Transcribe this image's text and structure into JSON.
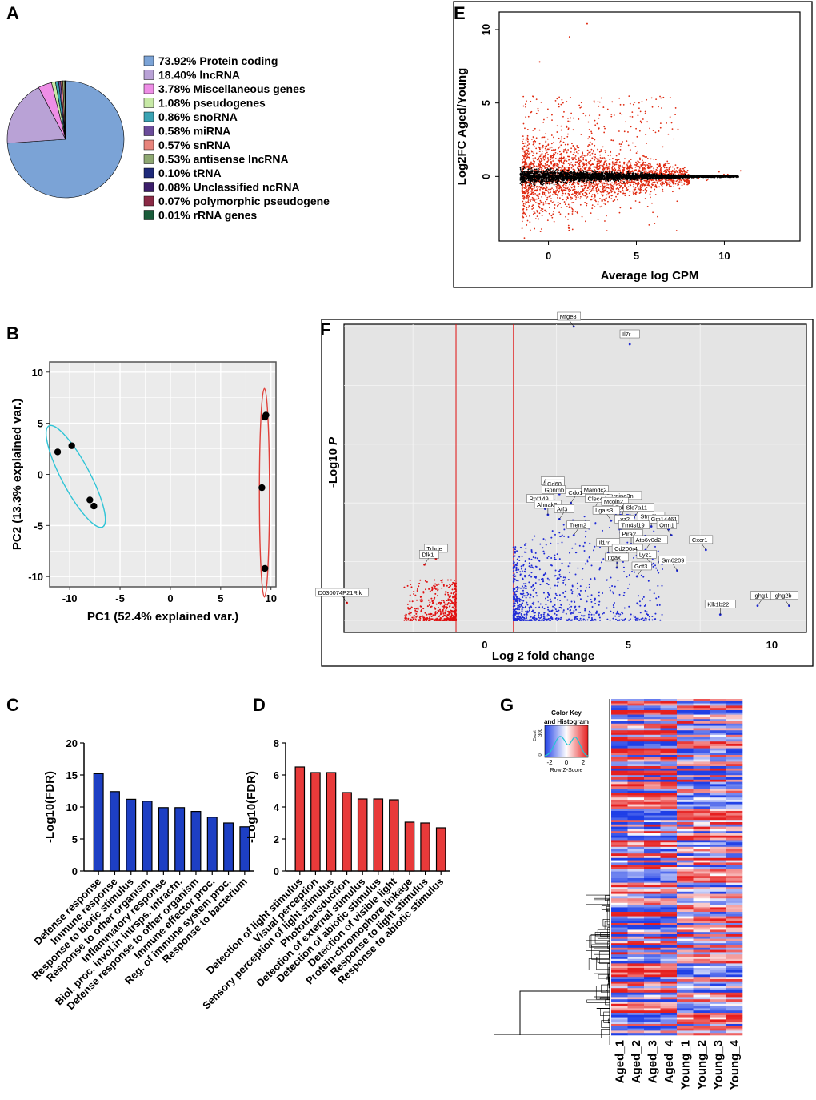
{
  "panels": [
    "A",
    "B",
    "C",
    "D",
    "E",
    "F",
    "G"
  ],
  "chart_data": [
    {
      "id": "A",
      "type": "pie",
      "slices": [
        {
          "value": 73.92,
          "label": "Protein coding",
          "color": "#7ba3d6"
        },
        {
          "value": 18.4,
          "label": "lncRNA",
          "color": "#b9a2d6"
        },
        {
          "value": 3.78,
          "label": "Miscellaneous genes",
          "color": "#ee8ee6"
        },
        {
          "value": 1.08,
          "label": "pseudogenes",
          "color": "#c7e9a6"
        },
        {
          "value": 0.86,
          "label": "snoRNA",
          "color": "#3aa3b3"
        },
        {
          "value": 0.58,
          "label": "miRNA",
          "color": "#6b4c9a"
        },
        {
          "value": 0.57,
          "label": "snRNA",
          "color": "#e8847c"
        },
        {
          "value": 0.53,
          "label": "antisense lncRNA",
          "color": "#8ea872"
        },
        {
          "value": 0.1,
          "label": "tRNA",
          "color": "#1f2a7a"
        },
        {
          "value": 0.08,
          "label": "Unclassified ncRNA",
          "color": "#3c1e6b"
        },
        {
          "value": 0.07,
          "label": "polymorphic pseudogene",
          "color": "#8a2a45"
        },
        {
          "value": 0.01,
          "label": "rRNA genes",
          "color": "#1a5c3a"
        }
      ],
      "legend_text": [
        "73.92%  Protein coding",
        "18.40%  lncRNA",
        "3.78%  Miscellaneous genes",
        "1.08%  pseudogenes",
        "0.86%  snoRNA",
        "0.58%  miRNA",
        "0.57%  snRNA",
        "0.53%  antisense lncRNA",
        "0.10%  tRNA",
        "0.08%  Unclassified ncRNA",
        "0.07%  polymorphic pseudogene",
        "0.01%  rRNA genes"
      ]
    },
    {
      "id": "B",
      "type": "scatter",
      "xlabel": "PC1 (52.4% explained var.)",
      "ylabel": "PC2 (13.3% explained var.)",
      "xlim": [
        -12,
        10.5
      ],
      "ylim": [
        -11,
        11
      ],
      "xticks": [
        -10,
        -5,
        0,
        5,
        10
      ],
      "yticks": [
        -10,
        -5,
        0,
        5,
        10
      ],
      "series": [
        {
          "color": "#2ec4d6",
          "points": [
            [
              -11.2,
              2.2
            ],
            [
              -9.8,
              2.8
            ],
            [
              -8.0,
              -2.5
            ],
            [
              -7.6,
              -3.1
            ]
          ],
          "ellipse": {
            "cx": -9.4,
            "cy": -0.2,
            "rx": 1.4,
            "ry": 5.6,
            "rot": -28
          }
        },
        {
          "color": "#e0403a",
          "points": [
            [
              9.4,
              5.6
            ],
            [
              9.5,
              5.8
            ],
            [
              9.1,
              -1.3
            ],
            [
              9.4,
              -9.2
            ]
          ],
          "ellipse": {
            "cx": 9.35,
            "cy": -1.8,
            "rx": 0.5,
            "ry": 10.2,
            "rot": 0
          }
        }
      ]
    },
    {
      "id": "C",
      "type": "bar",
      "ylabel": "-Log10(FDR)",
      "ylim": [
        0,
        20
      ],
      "yticks": [
        0,
        5,
        10,
        15,
        20
      ],
      "color": "#1d3fc4",
      "categories": [
        "Defense response",
        "Immune response",
        "Response to biotic stimulus",
        "Response to other organism",
        "Inflammatory response",
        "Biol. proc. invol.in intrsps. intractn.",
        "Defense response to other organism",
        "Immune effector proc.",
        "Reg. of immune system proc.",
        "Response to bacterium"
      ],
      "values": [
        15.2,
        12.4,
        11.2,
        10.9,
        9.9,
        9.9,
        9.3,
        8.4,
        7.5,
        6.9
      ]
    },
    {
      "id": "D",
      "type": "bar",
      "ylabel": "-Log10(FDR)",
      "ylim": [
        0,
        8
      ],
      "yticks": [
        0,
        2,
        4,
        6,
        8
      ],
      "color": "#e83a3a",
      "categories": [
        "Detection of light stimulus",
        "Visual perception",
        "Sensory perception of light stimulus",
        "Phototransduction",
        "Detection of external stimulus",
        "Detection of abiotic stimulus",
        "Detection of visible light",
        "Protein-chromophore linkage",
        "Response to light stimulus",
        "Response to abiotic stimulus"
      ],
      "values": [
        6.5,
        6.15,
        6.15,
        4.9,
        4.5,
        4.5,
        4.45,
        3.05,
        3.0,
        2.7
      ]
    },
    {
      "id": "E",
      "type": "scatter",
      "xlabel": "Average log CPM",
      "ylabel": "Log2FC Aged/Young",
      "xlim": [
        -2.8,
        14.3
      ],
      "ylim": [
        -4.4,
        11.2
      ],
      "xticks": [
        0,
        5,
        10
      ],
      "yticks": [
        0,
        5,
        10
      ],
      "colors": {
        "sig": "#e02a10",
        "ns": "#000000"
      },
      "labeled_points": [
        [
          2.2,
          10.4
        ],
        [
          1.2,
          9.5
        ],
        [
          -0.5,
          7.8
        ]
      ]
    },
    {
      "id": "F",
      "type": "scatter",
      "xlabel": "Log 2 fold change",
      "ylabel": "-Log10 P",
      "xlim": [
        -4.9,
        11.2
      ],
      "ylim": [
        0,
        10
      ],
      "xticks": [
        0,
        5,
        10
      ],
      "xthresholds": [
        -1,
        1
      ],
      "colors": {
        "up": "#1f2ad6",
        "down": "#e01010",
        "line": "#e01010"
      },
      "genes": [
        {
          "name": "Mfge8",
          "x": 3.1,
          "y": 10.0
        },
        {
          "name": "Il7r",
          "x": 5.05,
          "y": 9.4
        },
        {
          "name": "Anpep",
          "x": 2.2,
          "y": 4.4
        },
        {
          "name": "Cd68",
          "x": 2.6,
          "y": 4.3
        },
        {
          "name": "Gpnmb",
          "x": 2.4,
          "y": 4.1
        },
        {
          "name": "Cdo1",
          "x": 3.0,
          "y": 4.0
        },
        {
          "name": "Rnf149",
          "x": 2.1,
          "y": 3.8
        },
        {
          "name": "Ahnak2",
          "x": 2.2,
          "y": 3.6
        },
        {
          "name": "Atf3",
          "x": 2.6,
          "y": 3.45
        },
        {
          "name": "Mamdc2",
          "x": 4.0,
          "y": 4.1
        },
        {
          "name": "Serpina3n",
          "x": 4.8,
          "y": 3.9
        },
        {
          "name": "Clec4d",
          "x": 3.8,
          "y": 3.8
        },
        {
          "name": "Mcoln2",
          "x": 4.7,
          "y": 3.7
        },
        {
          "name": "Fabp",
          "x": 4.8,
          "y": 3.5
        },
        {
          "name": "Slc7a11",
          "x": 5.2,
          "y": 3.5
        },
        {
          "name": "Lgals3",
          "x": 4.4,
          "y": 3.4
        },
        {
          "name": "Stra6l",
          "x": 5.8,
          "y": 3.2
        },
        {
          "name": "Lyz2",
          "x": 4.7,
          "y": 3.1
        },
        {
          "name": "Gm14461",
          "x": 6.4,
          "y": 3.1
        },
        {
          "name": "Tm4sf19",
          "x": 5.2,
          "y": 2.9
        },
        {
          "name": "Trem2",
          "x": 3.1,
          "y": 2.9
        },
        {
          "name": "Orm1",
          "x": 6.5,
          "y": 2.9
        },
        {
          "name": "Pira2",
          "x": 5.1,
          "y": 2.6
        },
        {
          "name": "Atp6v0d2",
          "x": 5.6,
          "y": 2.4
        },
        {
          "name": "Cxcr1",
          "x": 7.7,
          "y": 2.4
        },
        {
          "name": "Il1rn",
          "x": 4.3,
          "y": 2.3
        },
        {
          "name": "Cd200r4",
          "x": 4.8,
          "y": 2.1
        },
        {
          "name": "Lyz1",
          "x": 5.8,
          "y": 1.9
        },
        {
          "name": "Itgax",
          "x": 4.6,
          "y": 1.8
        },
        {
          "name": "Gdf3",
          "x": 5.3,
          "y": 1.5
        },
        {
          "name": "Gm6209",
          "x": 6.7,
          "y": 1.7
        },
        {
          "name": "Klk1b22",
          "x": 8.2,
          "y": 0.2
        },
        {
          "name": "Ighg1",
          "x": 9.5,
          "y": 0.5
        },
        {
          "name": "Ighg2b",
          "x": 10.6,
          "y": 0.5
        },
        {
          "name": "Trhde",
          "x": -1.7,
          "y": 2.1
        },
        {
          "name": "Dlk1",
          "x": -2.1,
          "y": 1.9
        },
        {
          "name": "D030074P21Rik",
          "x": -4.8,
          "y": 0.6
        }
      ]
    },
    {
      "id": "G",
      "type": "heatmap",
      "columns": [
        "Aged_1",
        "Aged_2",
        "Aged_3",
        "Aged_4",
        "Young_1",
        "Young_2",
        "Young_3",
        "Young_4"
      ],
      "key_title": "Color Key and Histogram",
      "key_title_lines": [
        "Color Key",
        "and Histogram"
      ],
      "key_ylabel": "Count",
      "key_yticks": [
        "0",
        "300"
      ],
      "key_xlabel": "Row Z-Score",
      "key_ticks": [
        "-2",
        "0",
        "2"
      ],
      "palette": [
        "#1f3fe6",
        "#ffffff",
        "#e61f1f"
      ]
    }
  ]
}
